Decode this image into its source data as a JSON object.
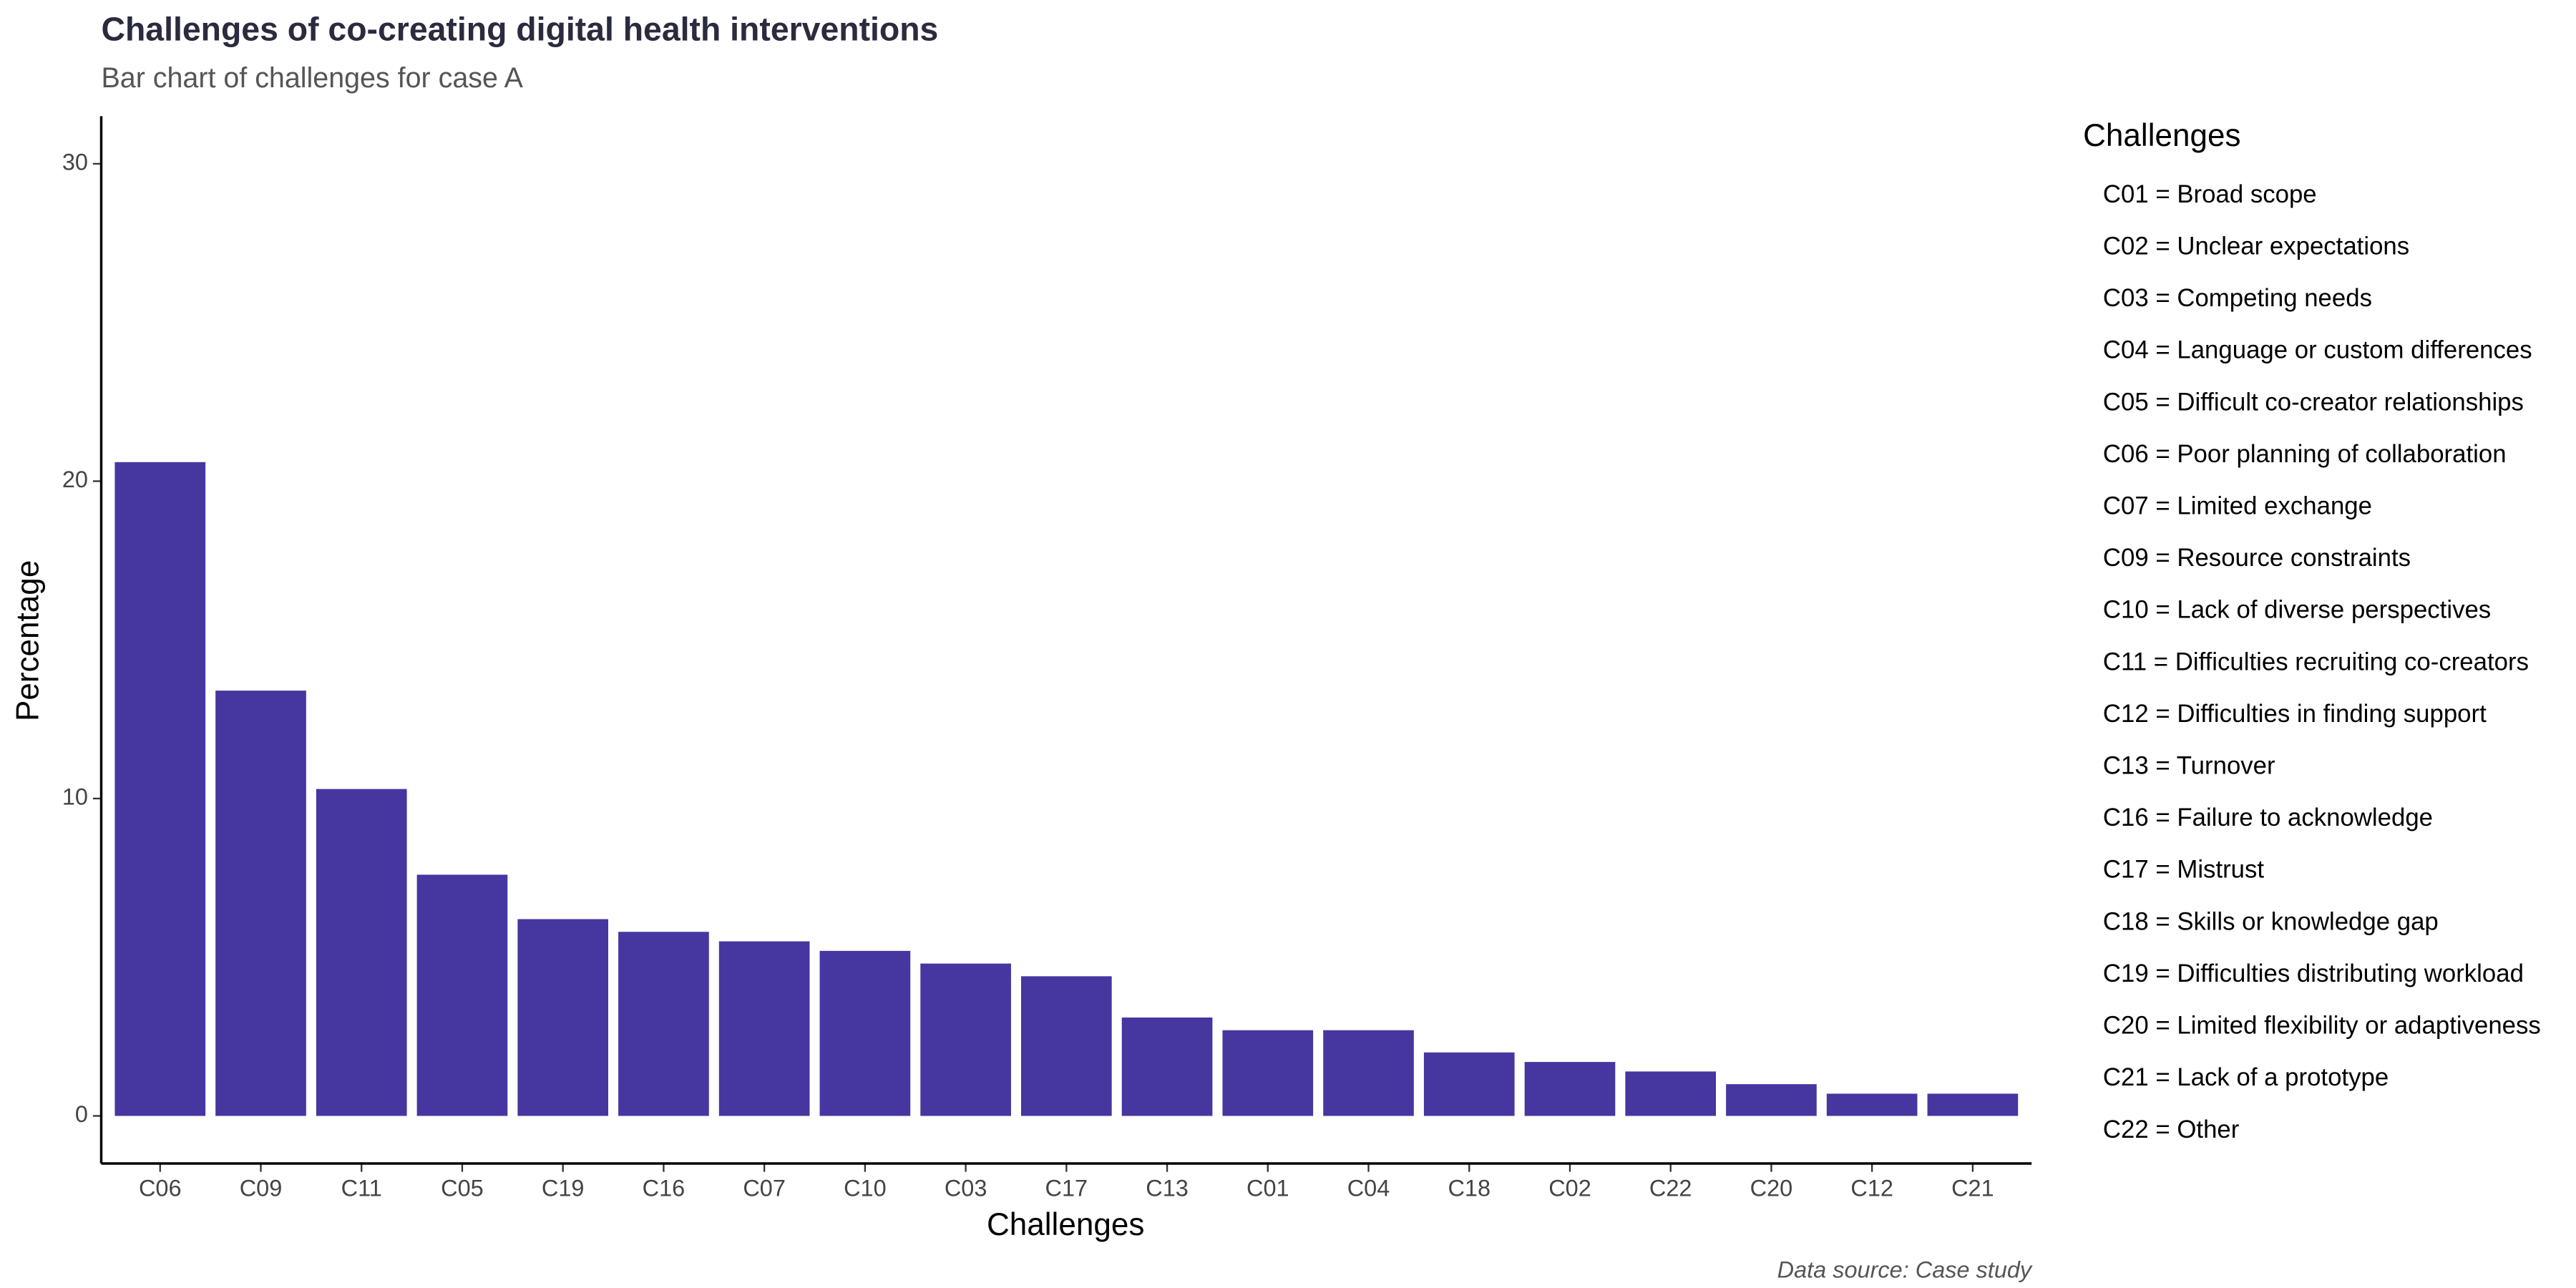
{
  "chart_data": {
    "type": "bar",
    "title": "Challenges of co-creating digital health interventions",
    "subtitle": "Bar chart of challenges for case A",
    "x_label": "Challenges",
    "y_label": "Percentage",
    "caption": "Data source: Case study",
    "categories": [
      "C06",
      "C09",
      "C11",
      "C05",
      "C19",
      "C16",
      "C07",
      "C10",
      "C03",
      "C17",
      "C13",
      "C01",
      "C04",
      "C18",
      "C02",
      "C22",
      "C20",
      "C12",
      "C21"
    ],
    "values": [
      20.6,
      13.4,
      10.3,
      7.6,
      6.2,
      5.8,
      5.5,
      5.2,
      4.8,
      4.4,
      3.1,
      2.7,
      2.7,
      2.0,
      1.7,
      1.4,
      1.0,
      0.7,
      0.7
    ],
    "color": "#4636a0",
    "ylim": [
      -1.5,
      31.5
    ],
    "yticks": [
      0,
      10,
      20,
      30
    ],
    "grid": false,
    "legend": {
      "title": "Challenges",
      "position": "right",
      "items": [
        "C01 = Broad scope",
        "C02 = Unclear expectations",
        "C03 = Competing needs",
        "C04 = Language or custom differences",
        "C05 = Difficult co-creator relationships",
        "C06 = Poor planning of collaboration",
        "C07 = Limited exchange",
        "C09 = Resource constraints",
        "C10 = Lack of diverse perspectives",
        "C11 = Difficulties recruiting co-creators",
        "C12 = Difficulties in finding support",
        "C13 = Turnover",
        "C16 = Failure to acknowledge",
        "C17 = Mistrust",
        "C18 = Skills or knowledge gap",
        "C19 = Difficulties distributing workload",
        "C20 = Limited flexibility or adaptiveness",
        "C21 = Lack of a prototype",
        "C22 = Other"
      ]
    }
  }
}
